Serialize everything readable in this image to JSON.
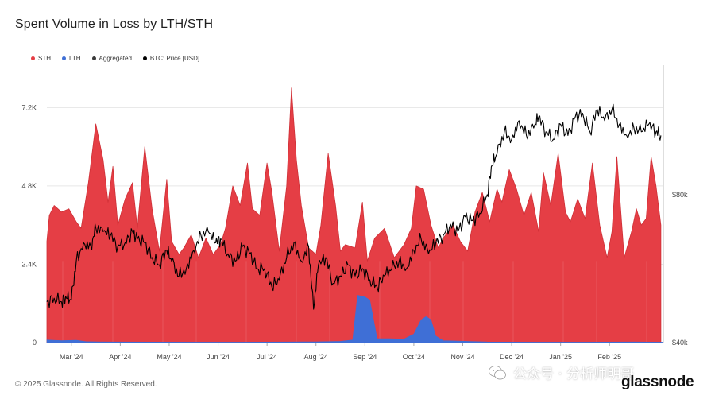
{
  "colors": {
    "sth": "#e53e45",
    "lth": "#3f6fd6",
    "aggregated": "#3a3a3a",
    "price": "#000000",
    "grid": "#e6e6e6"
  },
  "watermark": {
    "text": "公众号 · 分析师明哥",
    "icon": "wechat-icon"
  },
  "footer": {
    "copyright": "© 2025 Glassnode. All Rights Reserved.",
    "logo": "glassnode"
  },
  "chart_data": {
    "type": "area",
    "title": "Spent Volume in Loss by LTH/STH",
    "legend": [
      {
        "name": "STH",
        "color": "#e53e45"
      },
      {
        "name": "LTH",
        "color": "#3f6fd6"
      },
      {
        "name": "Aggregated",
        "color": "#3a3a3a"
      },
      {
        "name": "BTC: Price [USD]",
        "color": "#000000"
      }
    ],
    "legend_placement": "top-left",
    "grid": true,
    "x_range": [
      0,
      12.6
    ],
    "x_ticks": [
      {
        "value": 0.5,
        "label": "Mar '24"
      },
      {
        "value": 1.5,
        "label": "Apr '24"
      },
      {
        "value": 2.5,
        "label": "May '24"
      },
      {
        "value": 3.5,
        "label": "Jun '24"
      },
      {
        "value": 4.5,
        "label": "Jul '24"
      },
      {
        "value": 5.5,
        "label": "Aug '24"
      },
      {
        "value": 6.5,
        "label": "Sep '24"
      },
      {
        "value": 7.5,
        "label": "Oct '24"
      },
      {
        "value": 8.5,
        "label": "Nov '24"
      },
      {
        "value": 9.5,
        "label": "Dec '24"
      },
      {
        "value": 10.5,
        "label": "Jan '25"
      },
      {
        "value": 11.5,
        "label": "Feb '25"
      }
    ],
    "y_left": {
      "range": [
        0,
        8500
      ],
      "ticks": [
        {
          "value": 0,
          "label": "0"
        },
        {
          "value": 2400,
          "label": "2.4K"
        },
        {
          "value": 4800,
          "label": "4.8K"
        },
        {
          "value": 7200,
          "label": "7.2K"
        }
      ]
    },
    "y_right": {
      "range": [
        40000,
        115000
      ],
      "ticks": [
        {
          "value": 40000,
          "label": "$40k"
        },
        {
          "value": 80000,
          "label": "$80k"
        }
      ]
    },
    "series": [
      {
        "name": "STH",
        "axis": "left",
        "x": [
          0.0,
          0.05,
          0.15,
          0.3,
          0.45,
          0.6,
          0.7,
          0.85,
          1.0,
          1.15,
          1.25,
          1.35,
          1.45,
          1.6,
          1.75,
          1.85,
          2.0,
          2.15,
          2.3,
          2.45,
          2.55,
          2.7,
          2.8,
          2.95,
          3.1,
          3.25,
          3.4,
          3.55,
          3.65,
          3.8,
          3.95,
          4.1,
          4.2,
          4.35,
          4.5,
          4.6,
          4.75,
          4.9,
          5.0,
          5.1,
          5.2,
          5.35,
          5.5,
          5.6,
          5.75,
          5.9,
          6.0,
          6.1,
          6.3,
          6.45,
          6.55,
          6.7,
          6.9,
          7.1,
          7.3,
          7.45,
          7.55,
          7.7,
          7.85,
          8.0,
          8.1,
          8.3,
          8.45,
          8.6,
          8.75,
          8.9,
          9.05,
          9.2,
          9.3,
          9.45,
          9.6,
          9.75,
          9.9,
          10.05,
          10.15,
          10.3,
          10.45,
          10.6,
          10.7,
          10.85,
          11.0,
          11.15,
          11.3,
          11.45,
          11.55,
          11.65,
          11.8,
          11.95,
          12.05,
          12.15,
          12.25,
          12.35,
          12.45,
          12.55
        ],
        "values": [
          3100,
          3900,
          4200,
          4000,
          4100,
          3700,
          3500,
          4900,
          6700,
          5600,
          4300,
          5400,
          3600,
          4400,
          4900,
          3500,
          6000,
          4100,
          2800,
          5000,
          3100,
          2700,
          2900,
          3300,
          2600,
          3200,
          2700,
          3000,
          3500,
          4800,
          4200,
          5500,
          4100,
          3900,
          5500,
          4600,
          2800,
          4800,
          7800,
          5600,
          4200,
          2900,
          2700,
          3600,
          5800,
          4200,
          2800,
          3000,
          2900,
          4300,
          2500,
          3200,
          3500,
          2600,
          3000,
          3500,
          4800,
          4700,
          3600,
          2900,
          3200,
          3600,
          3100,
          2800,
          4000,
          4600,
          3700,
          4700,
          4300,
          5300,
          4700,
          3900,
          4600,
          3400,
          5200,
          4200,
          5800,
          4000,
          3700,
          4400,
          3800,
          5500,
          3600,
          2600,
          3400,
          5700,
          2600,
          3400,
          4100,
          3600,
          3800,
          5700,
          4800,
          3600
        ]
      },
      {
        "name": "LTH",
        "axis": "left",
        "x": [
          0.0,
          0.3,
          0.6,
          0.8,
          1.2,
          3.0,
          4.0,
          5.0,
          5.5,
          6.0,
          6.25,
          6.35,
          6.5,
          6.6,
          6.75,
          7.0,
          7.3,
          7.5,
          7.65,
          7.75,
          7.85,
          7.95,
          8.1,
          9.0,
          10.0,
          11.0,
          12.0,
          12.6
        ],
        "values": [
          80,
          60,
          70,
          30,
          20,
          15,
          15,
          20,
          25,
          40,
          80,
          1450,
          1400,
          1300,
          120,
          120,
          110,
          260,
          700,
          800,
          700,
          200,
          60,
          20,
          15,
          15,
          20,
          15
        ]
      },
      {
        "name": "BTC: Price [USD]",
        "axis": "right",
        "x": [
          0.0,
          0.15,
          0.3,
          0.4,
          0.5,
          0.6,
          0.75,
          0.9,
          1.0,
          1.15,
          1.3,
          1.45,
          1.6,
          1.75,
          1.85,
          2.0,
          2.15,
          2.3,
          2.45,
          2.55,
          2.7,
          2.85,
          3.0,
          3.15,
          3.3,
          3.45,
          3.55,
          3.7,
          3.85,
          4.0,
          4.15,
          4.3,
          4.45,
          4.6,
          4.75,
          4.9,
          5.05,
          5.2,
          5.35,
          5.45,
          5.55,
          5.7,
          5.85,
          6.0,
          6.15,
          6.3,
          6.45,
          6.6,
          6.75,
          6.9,
          7.05,
          7.2,
          7.35,
          7.5,
          7.65,
          7.8,
          7.95,
          8.1,
          8.25,
          8.4,
          8.55,
          8.7,
          8.85,
          9.0,
          9.1,
          9.2,
          9.35,
          9.5,
          9.65,
          9.8,
          9.95,
          10.05,
          10.2,
          10.35,
          10.5,
          10.65,
          10.8,
          10.95,
          11.1,
          11.25,
          11.4,
          11.55,
          11.7,
          11.85,
          12.0,
          12.15,
          12.3,
          12.45,
          12.55
        ],
        "values": [
          51000,
          52000,
          51000,
          52000,
          51500,
          62000,
          67000,
          66000,
          71000,
          70000,
          69000,
          66000,
          67000,
          70000,
          68000,
          67000,
          63000,
          61000,
          65000,
          62000,
          58000,
          60000,
          65000,
          69000,
          70000,
          67000,
          68000,
          64000,
          62000,
          66000,
          64000,
          60000,
          60000,
          55000,
          57000,
          63000,
          67000,
          62000,
          66000,
          49000,
          61000,
          63000,
          56000,
          58000,
          61000,
          58000,
          60000,
          57000,
          55000,
          58000,
          60000,
          62000,
          60000,
          65000,
          68000,
          64000,
          67000,
          69000,
          72000,
          70000,
          74000,
          73000,
          75000,
          80000,
          88000,
          91000,
          97000,
          95000,
          100000,
          96000,
          98000,
          101000,
          97000,
          95000,
          99000,
          96000,
          101000,
          102000,
          97000,
          103000,
          100000,
          103000,
          99000,
          96000,
          98000,
          97000,
          99000,
          97000,
          96000
        ]
      }
    ]
  }
}
